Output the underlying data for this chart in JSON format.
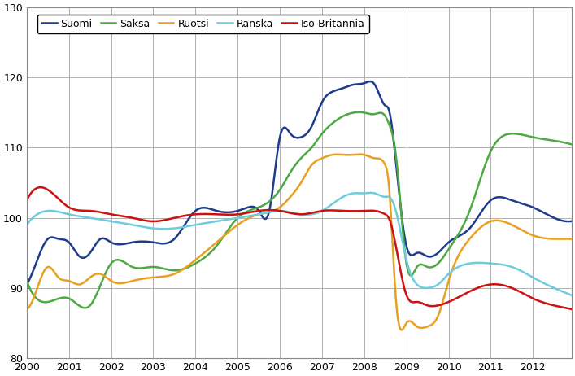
{
  "title": "",
  "xlabel": "",
  "ylabel": "",
  "ylim": [
    80,
    130
  ],
  "xlim": [
    2000.0,
    2012.917
  ],
  "yticks": [
    80,
    90,
    100,
    110,
    120,
    130
  ],
  "xtick_labels": [
    "2000",
    "2001",
    "2002",
    "2003",
    "2004",
    "2005",
    "2006",
    "2007",
    "2008",
    "2009",
    "2010",
    "2011",
    "2012"
  ],
  "xtick_positions": [
    2000,
    2001,
    2002,
    2003,
    2004,
    2005,
    2006,
    2007,
    2008,
    2009,
    2010,
    2011,
    2012
  ],
  "legend_entries": [
    "Suomi",
    "Saksa",
    "Ruotsi",
    "Ranska",
    "Iso-Britannia"
  ],
  "colors": {
    "Suomi": "#1f3b8c",
    "Saksa": "#4ea843",
    "Ruotsi": "#e8a020",
    "Ranska": "#6eccdd",
    "Iso-Britannia": "#cc1111"
  },
  "linewidth": 1.8,
  "grid_color": "#b0b0b0",
  "background": "#ffffff",
  "Suomi_x": [
    2000.0,
    2000.25,
    2000.5,
    2000.75,
    2001.0,
    2001.25,
    2001.5,
    2001.75,
    2002.0,
    2002.5,
    2003.0,
    2003.5,
    2004.0,
    2004.5,
    2005.0,
    2005.25,
    2005.5,
    2005.75,
    2006.0,
    2006.25,
    2006.5,
    2006.75,
    2007.0,
    2007.25,
    2007.5,
    2007.75,
    2008.0,
    2008.25,
    2008.5,
    2008.58,
    2008.75,
    2009.0,
    2009.25,
    2009.5,
    2009.75,
    2010.0,
    2010.5,
    2011.0,
    2011.5,
    2012.0,
    2012.5,
    2012.9
  ],
  "Suomi_y": [
    90.5,
    94.0,
    97.0,
    97.0,
    96.5,
    94.5,
    95.0,
    97.0,
    96.5,
    96.5,
    96.5,
    97.0,
    101.0,
    101.0,
    101.0,
    101.5,
    101.0,
    101.0,
    111.5,
    112.0,
    111.5,
    113.0,
    116.5,
    118.0,
    118.5,
    119.0,
    119.2,
    119.0,
    116.0,
    115.5,
    108.0,
    96.0,
    95.0,
    94.5,
    95.0,
    96.5,
    98.5,
    102.5,
    102.5,
    101.5,
    100.0,
    99.5
  ],
  "Saksa_x": [
    2000.0,
    2000.5,
    2001.0,
    2001.5,
    2002.0,
    2002.5,
    2003.0,
    2003.5,
    2004.0,
    2004.5,
    2005.0,
    2005.5,
    2006.0,
    2006.25,
    2006.5,
    2006.75,
    2007.0,
    2007.25,
    2007.5,
    2007.75,
    2008.0,
    2008.25,
    2008.5,
    2008.58,
    2008.75,
    2009.0,
    2009.25,
    2009.5,
    2009.75,
    2010.0,
    2010.5,
    2011.0,
    2011.5,
    2012.0,
    2012.5,
    2012.9
  ],
  "Saksa_y": [
    91.0,
    88.0,
    88.5,
    87.5,
    93.5,
    93.0,
    93.0,
    92.5,
    93.5,
    96.0,
    100.0,
    101.5,
    104.0,
    106.5,
    108.5,
    110.0,
    112.0,
    113.5,
    114.5,
    115.0,
    115.0,
    114.8,
    114.5,
    113.5,
    109.0,
    93.5,
    93.0,
    93.0,
    93.5,
    95.5,
    101.0,
    109.5,
    112.0,
    111.5,
    111.0,
    110.5
  ],
  "Ruotsi_x": [
    2000.0,
    2000.25,
    2000.5,
    2000.75,
    2001.0,
    2001.25,
    2001.5,
    2001.75,
    2002.0,
    2002.5,
    2003.0,
    2003.5,
    2004.0,
    2004.5,
    2005.0,
    2005.5,
    2006.0,
    2006.25,
    2006.5,
    2006.75,
    2007.0,
    2007.25,
    2007.5,
    2007.75,
    2008.0,
    2008.25,
    2008.5,
    2008.58,
    2008.75,
    2009.0,
    2009.25,
    2009.5,
    2009.75,
    2010.0,
    2010.5,
    2011.0,
    2011.5,
    2012.0,
    2012.5,
    2012.9
  ],
  "Ruotsi_y": [
    87.0,
    90.0,
    93.0,
    91.5,
    91.0,
    90.5,
    91.5,
    92.0,
    91.0,
    91.0,
    91.5,
    92.0,
    94.0,
    96.5,
    99.0,
    100.5,
    101.5,
    103.0,
    105.0,
    107.5,
    108.5,
    109.0,
    109.0,
    109.0,
    109.0,
    108.5,
    107.5,
    105.0,
    88.5,
    85.0,
    84.5,
    84.5,
    86.0,
    91.0,
    97.0,
    99.5,
    99.0,
    97.5,
    97.0,
    97.0
  ],
  "Ranska_x": [
    2000.0,
    2000.5,
    2001.0,
    2001.5,
    2002.0,
    2002.5,
    2003.0,
    2003.5,
    2004.0,
    2004.5,
    2005.0,
    2005.5,
    2006.0,
    2006.5,
    2007.0,
    2007.25,
    2007.5,
    2007.75,
    2008.0,
    2008.25,
    2008.5,
    2008.58,
    2008.75,
    2009.0,
    2009.25,
    2009.5,
    2009.75,
    2010.0,
    2010.5,
    2011.0,
    2011.5,
    2012.0,
    2012.5,
    2012.9
  ],
  "Ranska_y": [
    99.0,
    101.0,
    100.5,
    100.0,
    99.5,
    99.0,
    98.5,
    98.5,
    99.0,
    99.5,
    100.0,
    100.5,
    101.0,
    100.5,
    101.0,
    102.0,
    103.0,
    103.5,
    103.5,
    103.5,
    103.0,
    103.0,
    101.0,
    94.0,
    90.5,
    90.0,
    90.5,
    92.0,
    93.5,
    93.5,
    93.0,
    91.5,
    90.0,
    89.0
  ],
  "Iso-Britannia_x": [
    2000.0,
    2000.5,
    2001.0,
    2001.5,
    2002.0,
    2002.5,
    2003.0,
    2003.5,
    2004.0,
    2004.5,
    2005.0,
    2005.5,
    2006.0,
    2006.5,
    2007.0,
    2007.5,
    2008.0,
    2008.25,
    2008.5,
    2008.58,
    2008.75,
    2009.0,
    2009.25,
    2009.5,
    2009.75,
    2010.0,
    2010.5,
    2011.0,
    2011.5,
    2012.0,
    2012.5,
    2012.9
  ],
  "Iso-Britannia_y": [
    102.5,
    104.0,
    101.5,
    101.0,
    100.5,
    100.0,
    99.5,
    100.0,
    100.5,
    100.5,
    100.5,
    101.0,
    101.0,
    100.5,
    101.0,
    101.0,
    101.0,
    101.0,
    100.5,
    100.0,
    96.0,
    89.0,
    88.0,
    87.5,
    87.5,
    88.0,
    89.5,
    90.5,
    90.0,
    88.5,
    87.5,
    87.0
  ]
}
